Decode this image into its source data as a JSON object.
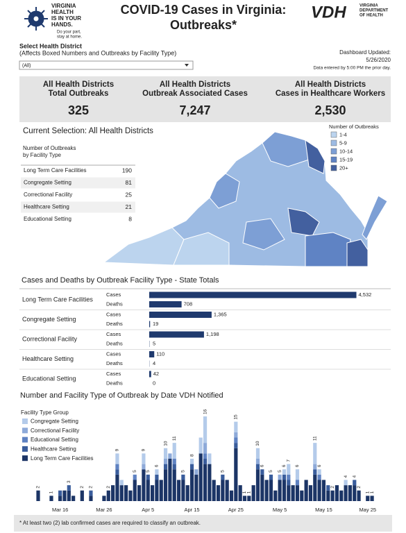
{
  "header": {
    "logo_lines": [
      "VIRGINIA",
      "HEALTH",
      "IS IN YOUR",
      "HANDS."
    ],
    "logo_tagline": [
      "Do your part,",
      "stay at home."
    ],
    "title_lines": [
      "COVID-19 Cases in Virginia:",
      "Outbreaks*"
    ],
    "agency_abbr": "VDH",
    "agency_lines": [
      "VIRGINIA",
      "DEPARTMENT",
      "OF HEALTH"
    ]
  },
  "filter": {
    "label": "Select Health District",
    "note": "(Affects Boxed Numbers and Outbreaks by Facility Type)",
    "selected": "(All)"
  },
  "update": {
    "label": "Dashboard Updated:",
    "date": "5/26/2020",
    "note": "Data entered by 5:00 PM the prior day."
  },
  "kpis": [
    {
      "label_lines": [
        "All Health Districts",
        "Total Outbreaks"
      ],
      "value": "325"
    },
    {
      "label_lines": [
        "All Health Districts",
        "Outbreak Associated Cases"
      ],
      "value": "7,247"
    },
    {
      "label_lines": [
        "All Health Districts",
        "Cases in Healthcare Workers"
      ],
      "value": "2,530"
    }
  ],
  "map": {
    "title": "Current Selection: All Health Districts",
    "legend_title": "Number of Outbreaks",
    "legend": [
      {
        "label": "1-4",
        "color": "#bcd4ee"
      },
      {
        "label": "5-9",
        "color": "#9dbbe3"
      },
      {
        "label": "10-14",
        "color": "#7d9fd5"
      },
      {
        "label": "15-19",
        "color": "#5f83c4"
      },
      {
        "label": "20+",
        "color": "#43609f"
      }
    ],
    "table_title_lines": [
      "Number of Outbreaks",
      "by Facility Type"
    ],
    "table": {
      "categories": [
        "Long Term Care Facilities",
        "Congregate Setting",
        "Correctional Facility",
        "Healthcare Setting",
        "Educational Setting"
      ],
      "values": [
        "190",
        "81",
        "25",
        "21",
        "8"
      ]
    }
  },
  "chart_data": [
    {
      "type": "barh",
      "title": "Cases and Deaths by Outbreak Facility Type - State Totals",
      "categories": [
        "Long Term Care Facilities",
        "Congregate Setting",
        "Correctional Facility",
        "Healthcare Setting",
        "Educational Setting"
      ],
      "series": [
        {
          "name": "Cases",
          "color": "#1f3a6e",
          "values": [
            4532,
            1365,
            1198,
            110,
            42
          ],
          "value_labels": [
            "4,532",
            "1,365",
            "1,198",
            "110",
            "42"
          ]
        },
        {
          "name": "Deaths",
          "color": "#1f3a6e",
          "values": [
            708,
            19,
            5,
            4,
            0
          ]
        }
      ],
      "xlim": [
        0,
        4600
      ]
    },
    {
      "type": "stacked_bar",
      "title": "Number and Facility Type of Outbreak by Date VDH Notified",
      "legend_title": "Facility Type Group",
      "categories": [
        null,
        null,
        null,
        null,
        null,
        "Mar 16",
        null,
        null,
        null,
        null,
        null,
        null,
        null,
        null,
        null,
        "Mar 26",
        null,
        null,
        null,
        null,
        null,
        null,
        null,
        null,
        null,
        "Apr 5",
        null,
        null,
        null,
        null,
        null,
        null,
        null,
        null,
        null,
        "Apr 15",
        null,
        null,
        null,
        null,
        null,
        null,
        null,
        null,
        null,
        "Apr 25",
        null,
        null,
        null,
        null,
        null,
        null,
        null,
        null,
        null,
        "May 5",
        null,
        null,
        null,
        null,
        null,
        null,
        null,
        null,
        null,
        "May 15",
        null,
        null,
        null,
        null,
        null,
        null,
        null,
        null,
        null,
        "May 25",
        null
      ],
      "series": [
        {
          "name": "Congregate Setting",
          "color": "#b4cbea",
          "values": [
            0,
            0,
            0,
            0,
            0,
            0,
            0,
            0,
            0,
            0,
            0,
            0,
            0,
            0,
            0,
            0,
            0,
            0,
            2,
            1,
            0,
            0,
            0,
            0,
            2,
            0,
            0,
            1,
            0,
            2,
            0,
            3,
            0,
            0,
            0,
            1,
            0,
            3,
            5,
            2,
            0,
            0,
            0,
            0,
            0,
            2,
            0,
            0,
            0,
            0,
            2,
            0,
            0,
            0,
            0,
            0,
            1,
            2,
            0,
            2,
            0,
            0,
            0,
            4,
            1,
            0,
            0,
            0,
            0,
            0,
            1,
            0,
            0,
            0,
            0,
            0,
            0
          ]
        },
        {
          "name": "Correctional Facility",
          "color": "#8eaad9",
          "values": [
            0,
            0,
            0,
            0,
            0,
            0,
            0,
            0,
            0,
            0,
            0,
            0,
            0,
            0,
            0,
            0,
            0,
            0,
            0,
            0,
            0,
            0,
            0,
            0,
            1,
            0,
            0,
            0,
            0,
            1,
            1,
            0,
            0,
            0,
            0,
            0,
            1,
            0,
            2,
            0,
            0,
            0,
            0,
            0,
            0,
            1,
            0,
            0,
            0,
            0,
            1,
            0,
            0,
            0,
            0,
            1,
            0,
            0,
            0,
            0,
            0,
            0,
            0,
            1,
            0,
            0,
            0,
            0,
            0,
            0,
            0,
            0,
            0,
            0,
            0,
            0,
            0
          ]
        },
        {
          "name": "Educational Setting",
          "color": "#5f82c2",
          "values": [
            0,
            0,
            0,
            0,
            0,
            0,
            0,
            0,
            0,
            0,
            0,
            0,
            0,
            0,
            0,
            0,
            0,
            0,
            1,
            0,
            0,
            0,
            1,
            0,
            0,
            0,
            0,
            0,
            0,
            0,
            0,
            1,
            0,
            0,
            0,
            0,
            0,
            0,
            1,
            0,
            0,
            0,
            0,
            0,
            0,
            1,
            0,
            0,
            0,
            0,
            0,
            0,
            0,
            0,
            0,
            0,
            0,
            1,
            0,
            1,
            0,
            0,
            0,
            0,
            1,
            0,
            0,
            0,
            0,
            0,
            0,
            0,
            0,
            0,
            0,
            0,
            0
          ]
        },
        {
          "name": "Healthcare Setting",
          "color": "#3a5d9c",
          "values": [
            0,
            0,
            0,
            0,
            0,
            1,
            0,
            1,
            0,
            0,
            0,
            0,
            1,
            0,
            0,
            0,
            0,
            0,
            1,
            0,
            0,
            0,
            0,
            0,
            0,
            1,
            0,
            1,
            0,
            1,
            0,
            1,
            0,
            1,
            0,
            1,
            0,
            0,
            1,
            0,
            0,
            0,
            1,
            0,
            0,
            1,
            0,
            0,
            0,
            0,
            1,
            1,
            0,
            1,
            0,
            0,
            1,
            1,
            0,
            0,
            0,
            0,
            0,
            1,
            0,
            0,
            1,
            0,
            0,
            0,
            0,
            0,
            1,
            0,
            0,
            0,
            0
          ]
        },
        {
          "name": "Long Term Care Facilities",
          "color": "#1c3566",
          "values": [
            2,
            0,
            0,
            1,
            0,
            1,
            2,
            2,
            1,
            0,
            2,
            0,
            1,
            0,
            0,
            1,
            2,
            3,
            5,
            3,
            3,
            2,
            4,
            3,
            6,
            4,
            3,
            4,
            4,
            6,
            8,
            6,
            4,
            4,
            3,
            6,
            5,
            9,
            7,
            7,
            4,
            3,
            4,
            4,
            2,
            10,
            3,
            1,
            1,
            3,
            6,
            5,
            4,
            4,
            2,
            4,
            4,
            3,
            3,
            3,
            2,
            4,
            3,
            5,
            4,
            4,
            2,
            2,
            3,
            2,
            3,
            3,
            3,
            2,
            0,
            1,
            1
          ]
        }
      ],
      "total_labels": [
        2,
        null,
        null,
        1,
        null,
        null,
        null,
        3,
        null,
        null,
        2,
        null,
        2,
        null,
        null,
        null,
        2,
        null,
        9,
        null,
        null,
        null,
        5,
        null,
        9,
        5,
        null,
        6,
        null,
        10,
        null,
        11,
        null,
        5,
        null,
        8,
        null,
        null,
        16,
        null,
        null,
        null,
        5,
        null,
        null,
        15,
        null,
        1,
        1,
        null,
        10,
        6,
        null,
        5,
        null,
        5,
        6,
        7,
        null,
        6,
        null,
        null,
        null,
        11,
        6,
        null,
        null,
        2,
        null,
        null,
        4,
        null,
        4,
        2,
        null,
        1,
        1
      ],
      "ylim": [
        0,
        16
      ]
    }
  ],
  "footnote": "* At least two (2) lab confirmed cases are required to classify an outbreak."
}
